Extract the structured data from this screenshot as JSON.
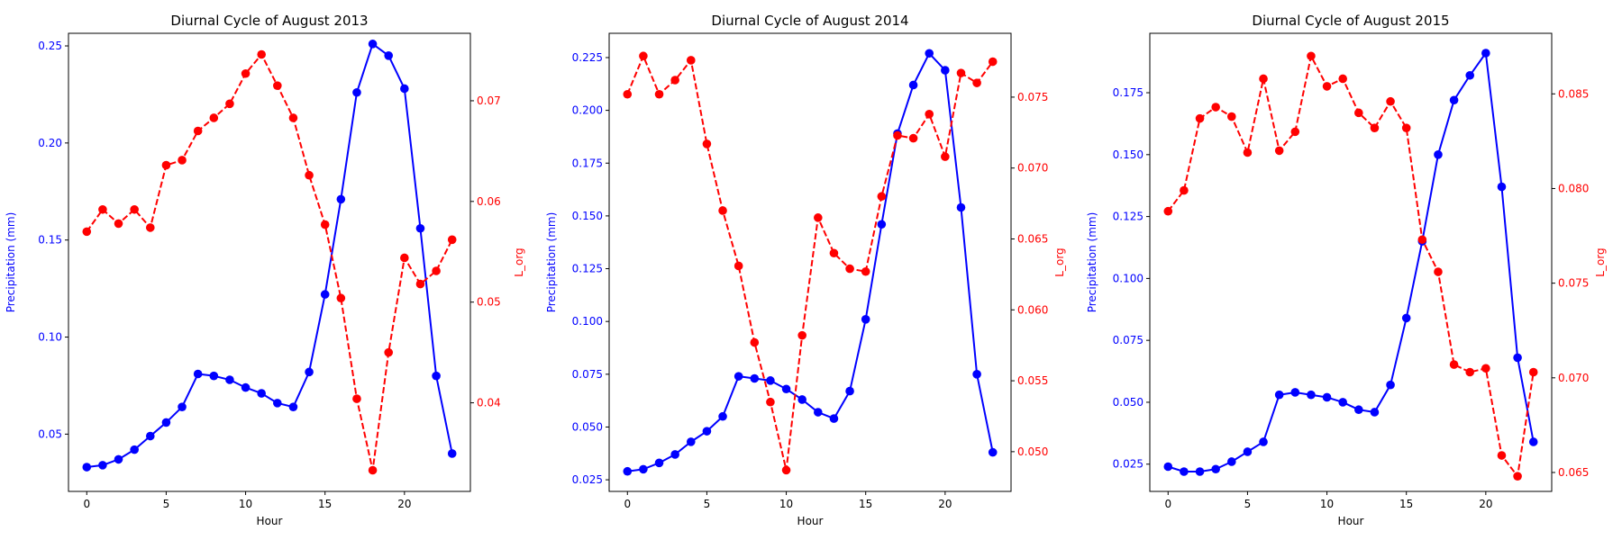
{
  "chart_data": [
    {
      "type": "line",
      "title": "Diurnal Cycle of August 2013",
      "xlabel": "Hour",
      "ylabel_left": "Precipitation (mm)",
      "ylabel_right": "L_org",
      "x": [
        0,
        1,
        2,
        3,
        4,
        5,
        6,
        7,
        8,
        9,
        10,
        11,
        12,
        13,
        14,
        15,
        16,
        17,
        18,
        19,
        20,
        21,
        22,
        23
      ],
      "xticks": [
        0,
        5,
        10,
        15,
        20
      ],
      "xlim": [
        -1.15,
        24.15
      ],
      "ylim_left": [
        0.0205,
        0.2565
      ],
      "yticks_left": [
        0.05,
        0.1,
        0.15,
        0.2,
        0.25
      ],
      "ylim_right": [
        0.0312,
        0.0767
      ],
      "yticks_right": [
        0.04,
        0.05,
        0.06,
        0.07
      ],
      "tick_decimals_left": 2,
      "tick_decimals_right": 2,
      "series": [
        {
          "axis": "left",
          "color": "#0000ff",
          "style": "solid",
          "values": [
            0.033,
            0.034,
            0.037,
            0.042,
            0.049,
            0.056,
            0.064,
            0.081,
            0.08,
            0.078,
            0.074,
            0.071,
            0.066,
            0.064,
            0.082,
            0.122,
            0.171,
            0.226,
            0.251,
            0.245,
            0.228,
            0.156,
            0.08,
            0.04
          ]
        },
        {
          "axis": "right",
          "color": "#ff0000",
          "style": "dashed",
          "values": [
            0.057,
            0.0592,
            0.0578,
            0.0592,
            0.0574,
            0.0636,
            0.0641,
            0.067,
            0.0683,
            0.0697,
            0.0727,
            0.0746,
            0.0715,
            0.0683,
            0.0626,
            0.0577,
            0.0504,
            0.0404,
            0.0333,
            0.045,
            0.0544,
            0.0518,
            0.0531,
            0.0562
          ]
        }
      ]
    },
    {
      "type": "line",
      "title": "Diurnal Cycle of August 2014",
      "xlabel": "Hour",
      "ylabel_left": "Precipitation (mm)",
      "ylabel_right": "L_org",
      "x": [
        0,
        1,
        2,
        3,
        4,
        5,
        6,
        7,
        8,
        9,
        10,
        11,
        12,
        13,
        14,
        15,
        16,
        17,
        18,
        19,
        20,
        21,
        22,
        23
      ],
      "xticks": [
        0,
        5,
        10,
        15,
        20
      ],
      "xlim": [
        -1.15,
        24.15
      ],
      "ylim_left": [
        0.0195,
        0.2365
      ],
      "yticks_left": [
        0.025,
        0.05,
        0.075,
        0.1,
        0.125,
        0.15,
        0.175,
        0.2,
        0.225
      ],
      "ylim_right": [
        0.0472,
        0.0795
      ],
      "yticks_right": [
        0.05,
        0.055,
        0.06,
        0.065,
        0.07,
        0.075
      ],
      "tick_decimals_left": 3,
      "tick_decimals_right": 3,
      "series": [
        {
          "axis": "left",
          "color": "#0000ff",
          "style": "solid",
          "values": [
            0.029,
            0.03,
            0.033,
            0.037,
            0.043,
            0.048,
            0.055,
            0.074,
            0.073,
            0.072,
            0.068,
            0.063,
            0.057,
            0.054,
            0.067,
            0.101,
            0.146,
            0.189,
            0.212,
            0.227,
            0.219,
            0.154,
            0.075,
            0.038
          ]
        },
        {
          "axis": "right",
          "color": "#ff0000",
          "style": "dashed",
          "values": [
            0.0752,
            0.0779,
            0.0752,
            0.0762,
            0.0776,
            0.0717,
            0.067,
            0.0631,
            0.0577,
            0.0535,
            0.0487,
            0.0582,
            0.0665,
            0.064,
            0.0629,
            0.0627,
            0.068,
            0.0723,
            0.0721,
            0.0738,
            0.0708,
            0.0767,
            0.076,
            0.0775
          ]
        }
      ]
    },
    {
      "type": "line",
      "title": "Diurnal Cycle of August 2015",
      "xlabel": "Hour",
      "ylabel_left": "Precipitation (mm)",
      "ylabel_right": "L_org",
      "x": [
        0,
        1,
        2,
        3,
        4,
        5,
        6,
        7,
        8,
        9,
        10,
        11,
        12,
        13,
        14,
        15,
        16,
        17,
        18,
        19,
        20,
        21,
        22,
        23
      ],
      "xticks": [
        0,
        5,
        10,
        15,
        20
      ],
      "xlim": [
        -1.15,
        24.15
      ],
      "ylim_left": [
        0.014,
        0.199
      ],
      "yticks_left": [
        0.025,
        0.05,
        0.075,
        0.1,
        0.125,
        0.15,
        0.175
      ],
      "ylim_right": [
        0.064,
        0.0882
      ],
      "yticks_right": [
        0.065,
        0.07,
        0.075,
        0.08,
        0.085
      ],
      "tick_decimals_left": 3,
      "tick_decimals_right": 3,
      "series": [
        {
          "axis": "left",
          "color": "#0000ff",
          "style": "solid",
          "values": [
            0.024,
            0.022,
            0.022,
            0.023,
            0.026,
            0.03,
            0.034,
            0.053,
            0.054,
            0.053,
            0.052,
            0.05,
            0.047,
            0.046,
            0.057,
            0.084,
            0.115,
            0.15,
            0.172,
            0.182,
            0.191,
            0.137,
            0.068,
            0.034
          ]
        },
        {
          "axis": "right",
          "color": "#ff0000",
          "style": "dashed",
          "values": [
            0.0788,
            0.0799,
            0.0837,
            0.0843,
            0.0838,
            0.0819,
            0.0858,
            0.082,
            0.083,
            0.087,
            0.0854,
            0.0858,
            0.084,
            0.0832,
            0.0846,
            0.0832,
            0.0773,
            0.0756,
            0.0707,
            0.0703,
            0.0705,
            0.0659,
            0.0648,
            0.0703
          ]
        }
      ]
    }
  ]
}
